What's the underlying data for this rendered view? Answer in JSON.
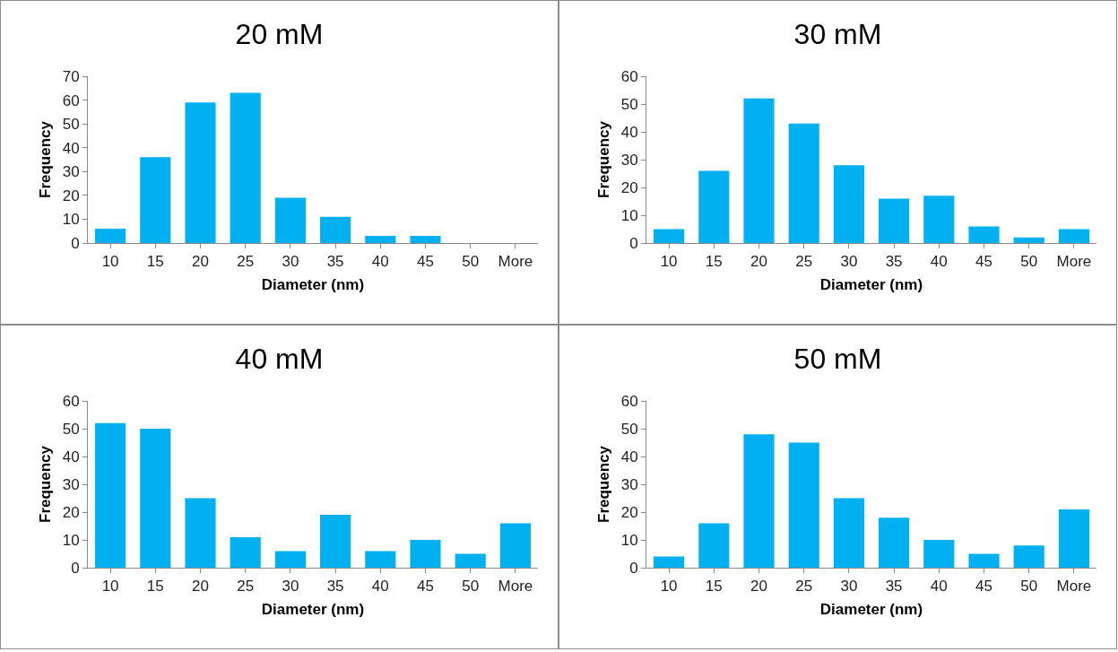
{
  "chart_data": [
    {
      "type": "bar",
      "title": "20 mM",
      "xlabel": "Diameter (nm)",
      "ylabel": "Frequency",
      "categories": [
        "10",
        "15",
        "20",
        "25",
        "30",
        "35",
        "40",
        "45",
        "50",
        "More"
      ],
      "values": [
        6,
        36,
        59,
        63,
        19,
        11,
        3,
        3,
        0,
        0
      ],
      "color": "#00b0f0",
      "ylim": [
        0,
        70
      ],
      "yticks": [
        0,
        10,
        20,
        30,
        40,
        50,
        60,
        70
      ]
    },
    {
      "type": "bar",
      "title": "30 mM",
      "xlabel": "Diameter (nm)",
      "ylabel": "Frequency",
      "categories": [
        "10",
        "15",
        "20",
        "25",
        "30",
        "35",
        "40",
        "45",
        "50",
        "More"
      ],
      "values": [
        5,
        26,
        52,
        43,
        28,
        16,
        17,
        6,
        2,
        5
      ],
      "color": "#00b0f0",
      "ylim": [
        0,
        60
      ],
      "yticks": [
        0,
        10,
        20,
        30,
        40,
        50,
        60
      ]
    },
    {
      "type": "bar",
      "title": "40 mM",
      "xlabel": "Diameter (nm)",
      "ylabel": "Frequency",
      "categories": [
        "10",
        "15",
        "20",
        "25",
        "30",
        "35",
        "40",
        "45",
        "50",
        "More"
      ],
      "values": [
        52,
        50,
        25,
        11,
        6,
        19,
        6,
        10,
        5,
        16
      ],
      "color": "#00b0f0",
      "ylim": [
        0,
        60
      ],
      "yticks": [
        0,
        10,
        20,
        30,
        40,
        50,
        60
      ]
    },
    {
      "type": "bar",
      "title": "50 mM",
      "xlabel": "Diameter (nm)",
      "ylabel": "Frequency",
      "categories": [
        "10",
        "15",
        "20",
        "25",
        "30",
        "35",
        "40",
        "45",
        "50",
        "More"
      ],
      "values": [
        4,
        16,
        48,
        45,
        25,
        18,
        10,
        5,
        8,
        21
      ],
      "color": "#00b0f0",
      "ylim": [
        0,
        60
      ],
      "yticks": [
        0,
        10,
        20,
        30,
        40,
        50,
        60
      ]
    }
  ]
}
